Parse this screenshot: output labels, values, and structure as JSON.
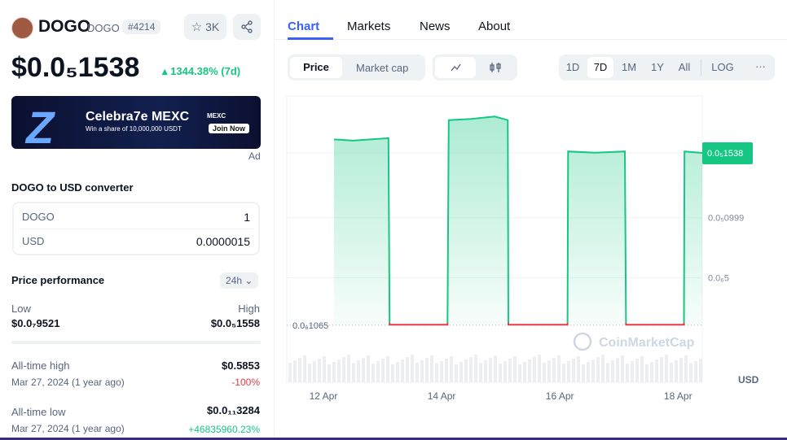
{
  "header": {
    "name": "DOGO",
    "symbol": "DOGO",
    "rank": "#4214",
    "watchlist": "3K"
  },
  "price": {
    "value": "$0.0₅1538",
    "change": "1344.38% (7d)"
  },
  "ad": {
    "headline": "Celebra7e MEXC",
    "subline": "Win a share of 10,000,000 USDT",
    "brand": "MEXC",
    "cta": "Join Now",
    "label": "Ad"
  },
  "converter": {
    "title": "DOGO to USD converter",
    "rows": [
      [
        "DOGO",
        "1"
      ],
      [
        "USD",
        "0.0000015"
      ]
    ]
  },
  "performance": {
    "title": "Price performance",
    "period": "24h",
    "low_label": "Low",
    "high_label": "High",
    "low": "$0.0₇9521",
    "high": "$0.0₅1558",
    "ath": {
      "label": "All-time high",
      "value": "$0.5853",
      "date": "Mar 27, 2024 (1 year ago)",
      "change": "-100%"
    },
    "atl": {
      "label": "All-time low",
      "value": "$0.0₁₁3284",
      "date": "Mar 27, 2024 (1 year ago)",
      "change": "+46835960.23%"
    }
  },
  "tabs": [
    "Chart",
    "Markets",
    "News",
    "About"
  ],
  "toolbar": {
    "modes": [
      "Price",
      "Market cap"
    ],
    "ranges": [
      "1D",
      "7D",
      "1M",
      "1Y",
      "All",
      "LOG"
    ]
  },
  "chart_data": {
    "type": "line",
    "color": "#16c784",
    "down_color": "#ea3943",
    "x": [
      12.18,
      12.5,
      12.8,
      13.1,
      13.12,
      13.6,
      14.1,
      14.12,
      14.5,
      14.9,
      15.12,
      15.13,
      15.6,
      16.13,
      16.14,
      16.6,
      17.1,
      17.12,
      17.6,
      18.1,
      18.11,
      18.41
    ],
    "values": [
      1.65e-06,
      1.64e-06,
      1.65e-06,
      1.66e-06,
      1.1e-07,
      1.1e-07,
      1.1e-07,
      1.81e-06,
      1.82e-06,
      1.84e-06,
      1.81e-06,
      1.1e-07,
      1.1e-07,
      1.1e-07,
      1.55e-06,
      1.54e-06,
      1.55e-06,
      1.1e-07,
      1.1e-07,
      1.1e-07,
      1.55e-06,
      1.538e-06
    ],
    "xlim": [
      11.38,
      18.41
    ],
    "xticks": [
      {
        "value": 12,
        "label": "12 Apr"
      },
      {
        "value": 14,
        "label": "14 Apr"
      },
      {
        "value": 16,
        "label": "16 Apr"
      },
      {
        "value": 18,
        "label": "18 Apr"
      }
    ],
    "ylim": [
      0,
      2e-06
    ],
    "yticks": [
      {
        "value": 9.99e-07,
        "label": "0.0₅0999"
      },
      {
        "value": 5e-07,
        "label": "0.0₆5"
      }
    ],
    "last_price": {
      "value": 1.538e-06,
      "label": "0.0₅1538"
    },
    "baseline": {
      "value": 1.065e-07,
      "label": "0.0₆1065"
    },
    "y_unit": "USD",
    "watermark": "CoinMarketCap",
    "grid": true
  }
}
